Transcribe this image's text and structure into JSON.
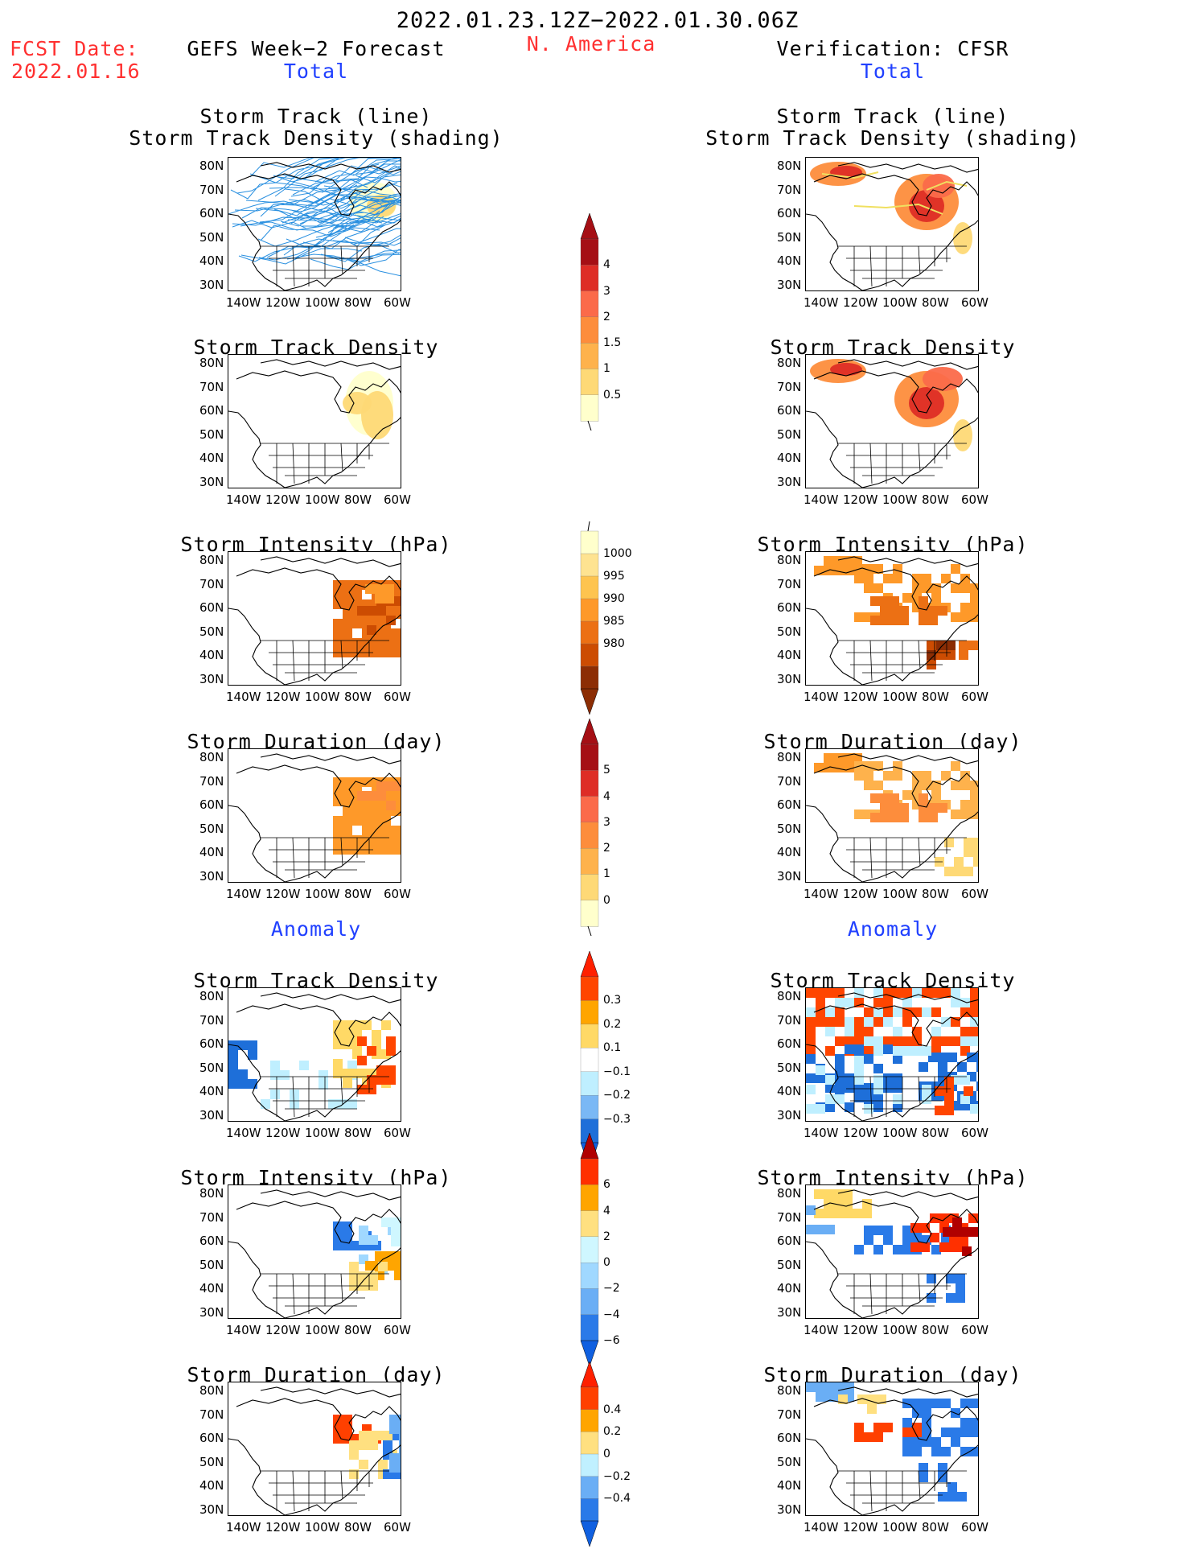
{
  "header": {
    "period": "2022.01.23.12Z−2022.01.30.06Z",
    "region": "N. America",
    "fcst_label": "FCST Date:",
    "fcst_date": "2022.01.16",
    "left_title": "GEFS Week−2 Forecast",
    "right_title": "Verification: CFSR",
    "total_label": "Total",
    "anomaly_label": "Anomaly"
  },
  "panel_titles": {
    "track": [
      "Storm Track (line)",
      "Storm Track Density (shading)"
    ],
    "density": "Storm Track Density",
    "intensity": "Storm Intensity (hPa)",
    "duration": "Storm Duration (day)"
  },
  "axes": {
    "lat_ticks": [
      "80N",
      "70N",
      "60N",
      "50N",
      "40N",
      "30N"
    ],
    "lon_ticks": [
      "140W",
      "120W",
      "100W",
      "80W",
      "60W"
    ]
  },
  "colorbars": [
    {
      "id": "density_total",
      "labels": [
        "4",
        "3",
        "2",
        "1.5",
        "1",
        "0.5"
      ],
      "colors": [
        "#a50f15",
        "#de2d26",
        "#fb6a4a",
        "#fd8d3c",
        "#feb24c",
        "#fed976",
        "#ffffcc"
      ],
      "top_arrow": "#a50f15",
      "bottom": "line"
    },
    {
      "id": "intensity_total",
      "labels": [
        "1000",
        "995",
        "990",
        "985",
        "980"
      ],
      "colors": [
        "#ffffcc",
        "#fee391",
        "#fec44f",
        "#fe9929",
        "#ec7014",
        "#cc4c02",
        "#8c2d04"
      ],
      "top": "line",
      "bottom_arrow": "#8c2d04"
    },
    {
      "id": "duration_total",
      "labels": [
        "5",
        "4",
        "3",
        "2",
        "1",
        "0"
      ],
      "colors": [
        "#a50f15",
        "#de2d26",
        "#fb6a4a",
        "#fd8d3c",
        "#feb24c",
        "#fed976",
        "#ffffcc"
      ],
      "top_arrow": "#a50f15",
      "bottom": "line"
    },
    {
      "id": "density_anom",
      "labels": [
        "0.3",
        "0.2",
        "0.1",
        "−0.1",
        "−0.2",
        "−0.3"
      ],
      "colors": [
        "#ff4500",
        "#ffa500",
        "#ffd966",
        "#ffffff",
        "#bfefff",
        "#7ab8f5",
        "#1e6fd9"
      ],
      "top_arrow": "#ff2000",
      "bottom_arrow": "#1060e0"
    },
    {
      "id": "intensity_anom",
      "labels": [
        "6",
        "4",
        "2",
        "0",
        "−2",
        "−4",
        "−6"
      ],
      "colors": [
        "#ff3000",
        "#ffa500",
        "#ffe080",
        "#cff7ff",
        "#a0d8ff",
        "#6aaef5",
        "#2a7ae8"
      ],
      "top_arrow": "#b00000",
      "bottom_arrow": "#1060e0"
    },
    {
      "id": "duration_anom",
      "labels": [
        "0.4",
        "0.2",
        "0",
        "−0.2",
        "−0.4"
      ],
      "colors": [
        "#ff4000",
        "#ffa500",
        "#ffe080",
        "#c0f0ff",
        "#6aaef5",
        "#2a7ae8"
      ],
      "top_arrow": "#ff2000",
      "bottom_arrow": "#1060e0"
    }
  ],
  "colors": {
    "red_text": "#ff3030",
    "blue_text": "#2040ff",
    "track_line": "#2a90e0"
  }
}
